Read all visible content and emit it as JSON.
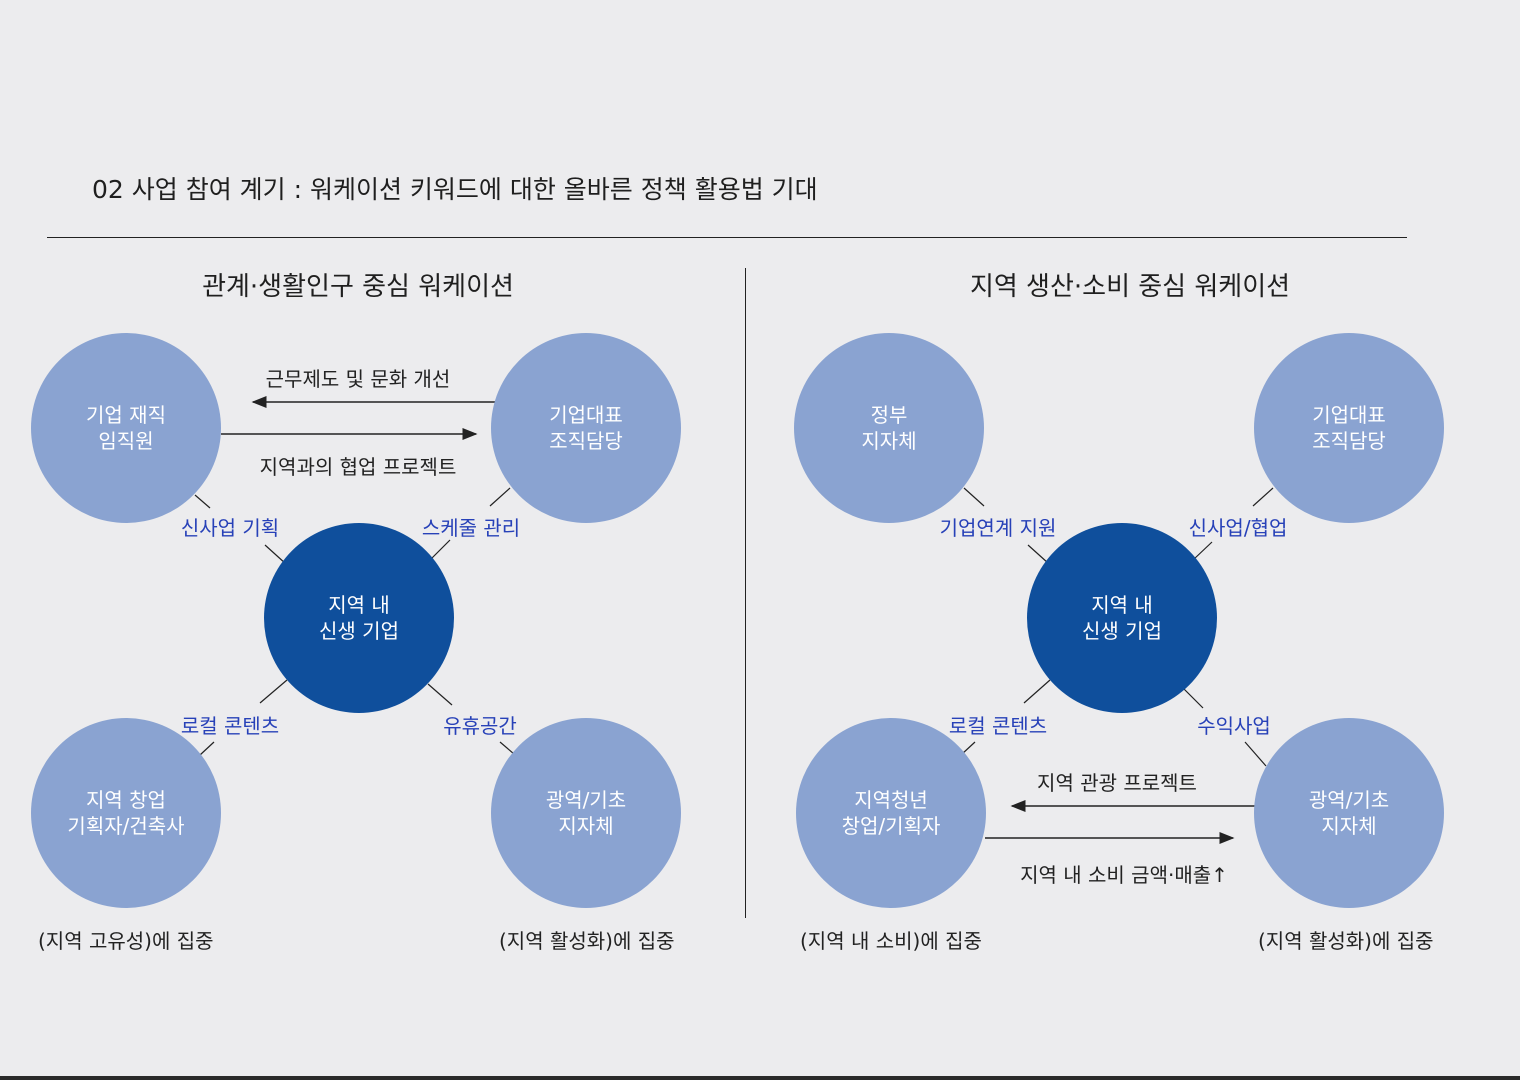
{
  "page": {
    "title": "02 사업 참여 계기 : 워케이션 키워드에 대한 올바른 정책 활용법 기대"
  },
  "left_section": {
    "title": "관계·생활인구 중심 워케이션",
    "top_left": "기업 재직\n임직원",
    "top_right": "기업대표\n조직담당",
    "center": "지역 내\n신생 기업",
    "bottom_left": "지역 창업\n기획자/건축사",
    "bottom_right": "광역/기초\n지자체",
    "arrow_top_label": "근무제도 및 문화 개선",
    "arrow_bottom_label": "지역과의 협업 프로젝트",
    "link_top_left": "신사업 기획",
    "link_top_right": "스케줄 관리",
    "link_bottom_left": "로컬 콘텐츠",
    "link_bottom_right": "유휴공간",
    "foot_left": "(지역 고유성)에 집중",
    "foot_right": "(지역 활성화)에 집중"
  },
  "right_section": {
    "title": "지역 생산·소비 중심 워케이션",
    "top_left": "정부\n지자체",
    "top_right": "기업대표\n조직담당",
    "center": "지역 내\n신생 기업",
    "bottom_left": "지역청년\n창업/기획자",
    "bottom_right": "광역/기초\n지자체",
    "link_top_left": "기업연계 지원",
    "link_top_right": "신사업/협업",
    "link_bottom_left": "로컬 콘텐츠",
    "link_bottom_right": "수익사업",
    "arrow_top_label": "지역 관광 프로젝트",
    "arrow_bottom_label": "지역 내 소비 금액·매출↑",
    "foot_left": "(지역 내 소비)에 집중",
    "foot_right": "(지역 활성화)에 집중"
  },
  "colors": {
    "outer_circle": "#8aa3d1",
    "center_circle": "#0f4f9c",
    "link_label": "#2741b8"
  }
}
